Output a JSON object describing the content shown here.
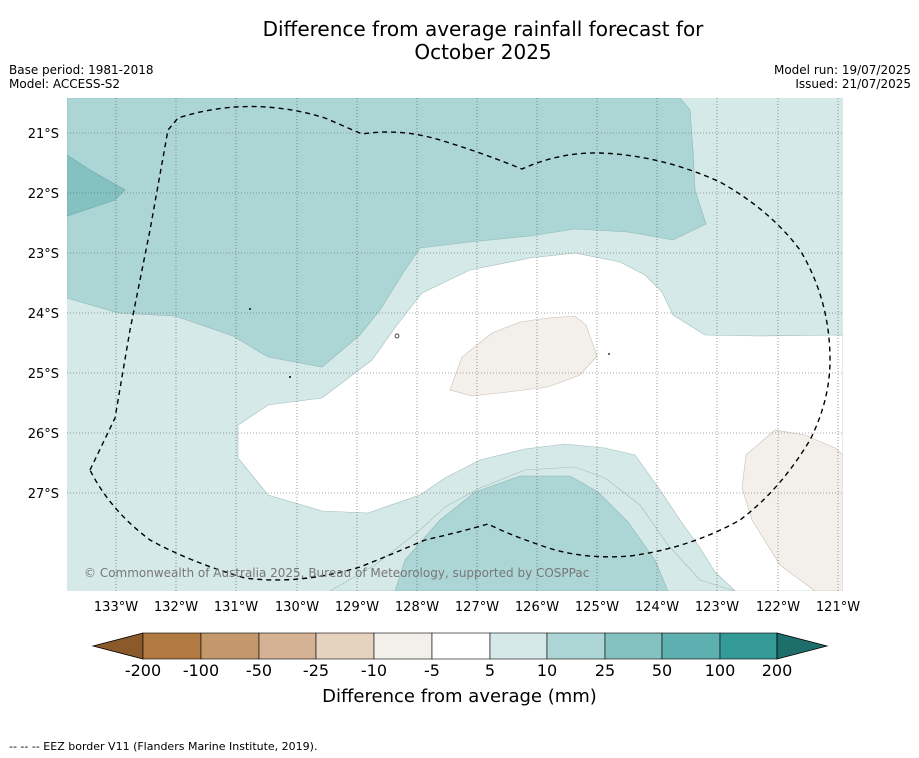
{
  "title": {
    "line1": "Difference from average rainfall forecast for",
    "line2": "October 2025"
  },
  "meta": {
    "base_period": "Base period: 1981-2018",
    "model": "Model: ACCESS-S2",
    "model_run": "Model run: 19/07/2025",
    "issued": "Issued: 21/07/2025"
  },
  "map": {
    "lat_labels": [
      "21°S",
      "22°S",
      "23°S",
      "24°S",
      "25°S",
      "26°S",
      "27°S"
    ],
    "lon_labels": [
      "133°W",
      "132°W",
      "131°W",
      "130°W",
      "129°W",
      "128°W",
      "127°W",
      "126°W",
      "125°W",
      "124°W",
      "123°W",
      "122°W",
      "121°W"
    ],
    "copyright": "© Commonwealth of Australia 2025, Bureau of Meteorology, supported by COSPPac",
    "eez_line_style": "dashed"
  },
  "colorbar": {
    "ticks": [
      "-200",
      "-100",
      "-50",
      "-25",
      "-10",
      "-5",
      "5",
      "10",
      "25",
      "50",
      "100",
      "200"
    ],
    "colors": [
      "#8a5a2a",
      "#b07a42",
      "#c4986a",
      "#d5b293",
      "#e5d2bf",
      "#f3efea",
      "#ffffff",
      "#d5e9e8",
      "#acd6d5",
      "#84c2c2",
      "#5eafaf",
      "#349a98",
      "#1e6e6c"
    ],
    "label": "Difference from average (mm)"
  },
  "footnote": "-- -- -- EEZ border V11 (Flanders Marine Institute, 2019)."
}
